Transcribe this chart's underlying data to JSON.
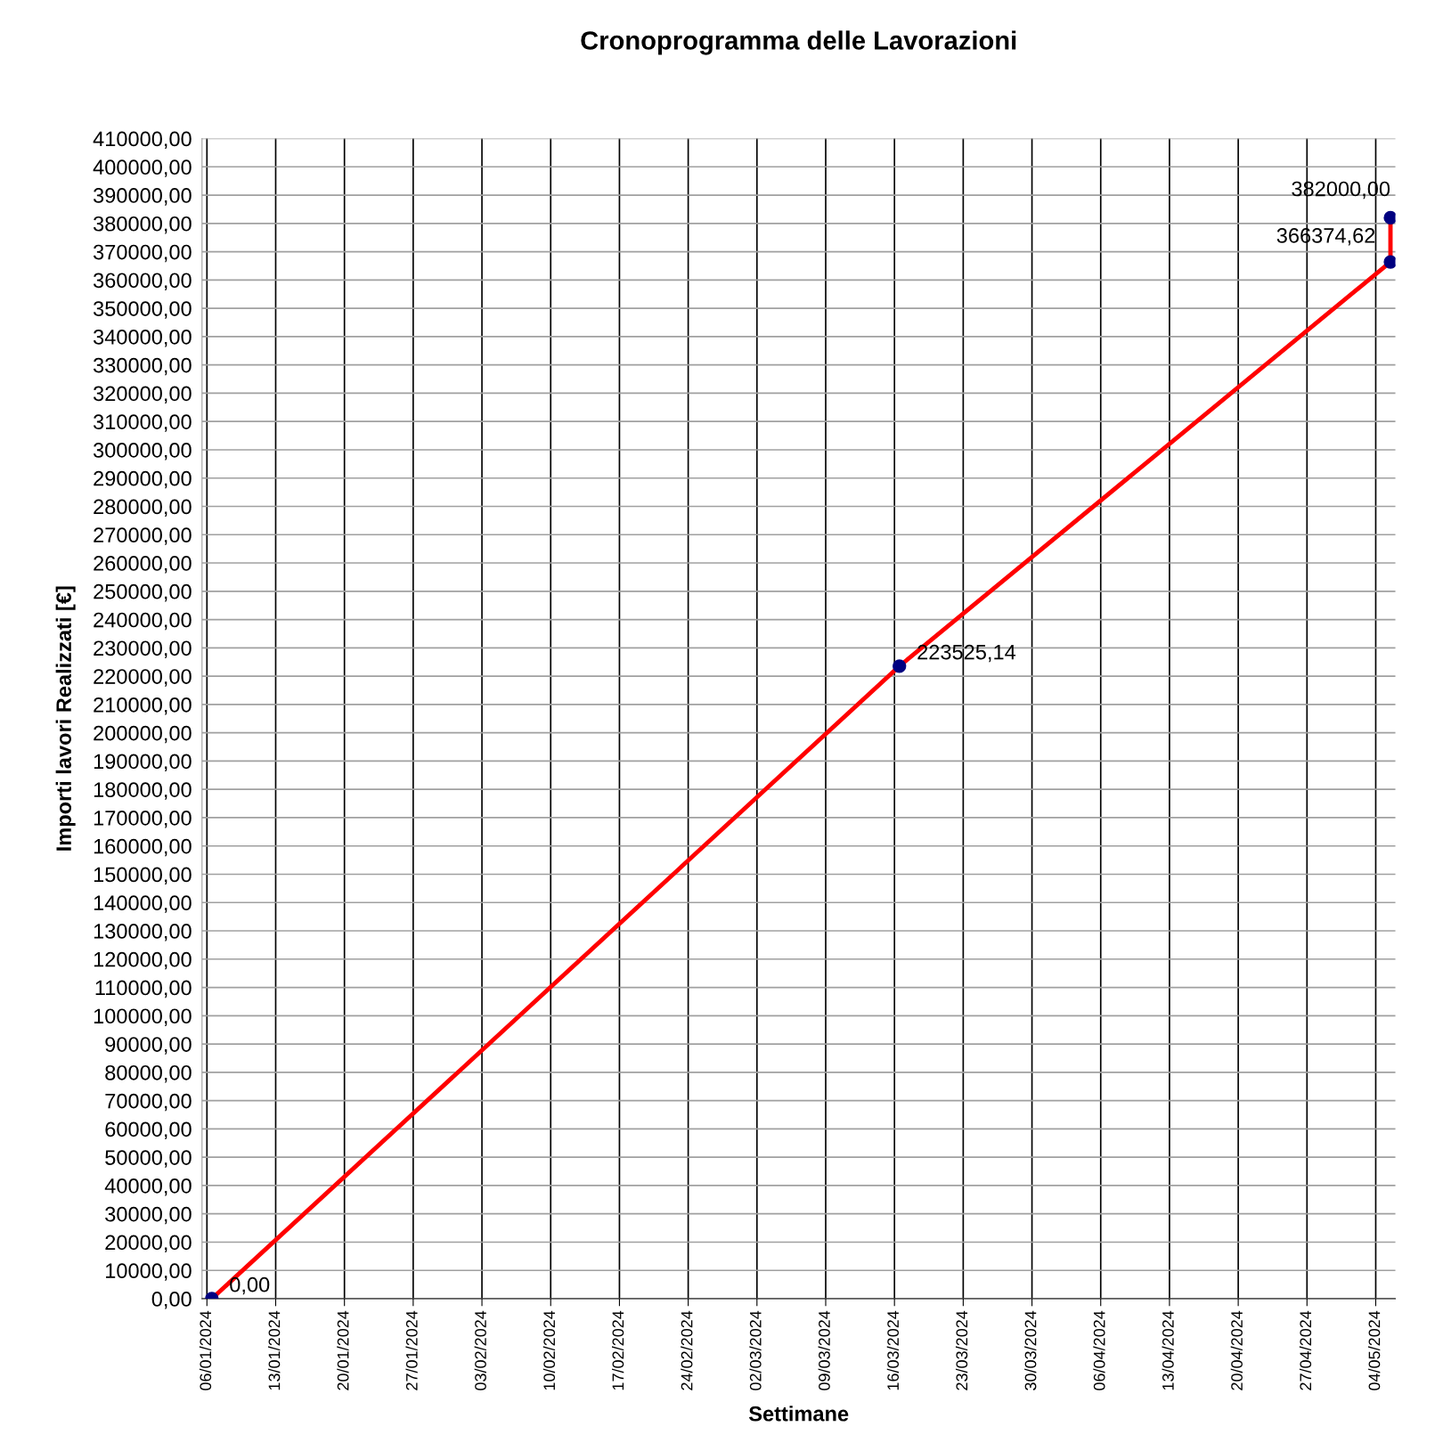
{
  "chart_data": {
    "type": "line",
    "title": "Cronoprogramma delle Lavorazioni",
    "xlabel": "Settimane",
    "ylabel": "Importi lavori Realizzati [€]",
    "x": [
      "2024-01-06T12:00",
      "2024-03-16T12:00",
      "2024-05-05T12:00",
      "2024-05-05T12:00"
    ],
    "series": [
      {
        "color": "#ff0000",
        "colors": [
          "#000080",
          "#000080",
          "#000080",
          "#000080"
        ],
        "values": [
          0,
          223525.14,
          366374.62,
          382000
        ],
        "value_labels": [
          "0,00",
          "223525,14",
          "366374,62",
          "382000,00"
        ]
      }
    ],
    "xlim": [
      "2024-01-05T12:00",
      "2024-05-06T00:00"
    ],
    "xticks": [
      {
        "value": "2024-01-06",
        "label": "06/01/2024"
      },
      {
        "value": "2024-01-13",
        "label": "13/01/2024"
      },
      {
        "value": "2024-01-20",
        "label": "20/01/2024"
      },
      {
        "value": "2024-01-27",
        "label": "27/01/2024"
      },
      {
        "value": "2024-02-03",
        "label": "03/02/2024"
      },
      {
        "value": "2024-02-10",
        "label": "10/02/2024"
      },
      {
        "value": "2024-02-17",
        "label": "17/02/2024"
      },
      {
        "value": "2024-02-24",
        "label": "24/02/2024"
      },
      {
        "value": "2024-03-02",
        "label": "02/03/2024"
      },
      {
        "value": "2024-03-09",
        "label": "09/03/2024"
      },
      {
        "value": "2024-03-16",
        "label": "16/03/2024"
      },
      {
        "value": "2024-03-23",
        "label": "23/03/2024"
      },
      {
        "value": "2024-03-30",
        "label": "30/03/2024"
      },
      {
        "value": "2024-04-06",
        "label": "06/04/2024"
      },
      {
        "value": "2024-04-13",
        "label": "13/04/2024"
      },
      {
        "value": "2024-04-20",
        "label": "20/04/2024"
      },
      {
        "value": "2024-04-27",
        "label": "27/04/2024"
      },
      {
        "value": "2024-05-04",
        "label": "04/05/2024"
      }
    ],
    "ylim": [
      0,
      410000
    ],
    "yticks": [
      {
        "value": 0,
        "label": "0,00"
      },
      {
        "value": 10000,
        "label": "10000,00"
      },
      {
        "value": 20000,
        "label": "20000,00"
      },
      {
        "value": 30000,
        "label": "30000,00"
      },
      {
        "value": 40000,
        "label": "40000,00"
      },
      {
        "value": 50000,
        "label": "50000,00"
      },
      {
        "value": 60000,
        "label": "60000,00"
      },
      {
        "value": 70000,
        "label": "70000,00"
      },
      {
        "value": 80000,
        "label": "80000,00"
      },
      {
        "value": 90000,
        "label": "90000,00"
      },
      {
        "value": 100000,
        "label": "100000,00"
      },
      {
        "value": 110000,
        "label": "110000,00"
      },
      {
        "value": 120000,
        "label": "120000,00"
      },
      {
        "value": 130000,
        "label": "130000,00"
      },
      {
        "value": 140000,
        "label": "140000,00"
      },
      {
        "value": 150000,
        "label": "150000,00"
      },
      {
        "value": 160000,
        "label": "160000,00"
      },
      {
        "value": 170000,
        "label": "170000,00"
      },
      {
        "value": 180000,
        "label": "180000,00"
      },
      {
        "value": 190000,
        "label": "190000,00"
      },
      {
        "value": 200000,
        "label": "200000,00"
      },
      {
        "value": 210000,
        "label": "210000,00"
      },
      {
        "value": 220000,
        "label": "220000,00"
      },
      {
        "value": 230000,
        "label": "230000,00"
      },
      {
        "value": 240000,
        "label": "240000,00"
      },
      {
        "value": 250000,
        "label": "250000,00"
      },
      {
        "value": 260000,
        "label": "260000,00"
      },
      {
        "value": 270000,
        "label": "270000,00"
      },
      {
        "value": 280000,
        "label": "280000,00"
      },
      {
        "value": 290000,
        "label": "290000,00"
      },
      {
        "value": 300000,
        "label": "300000,00"
      },
      {
        "value": 310000,
        "label": "310000,00"
      },
      {
        "value": 320000,
        "label": "320000,00"
      },
      {
        "value": 330000,
        "label": "330000,00"
      },
      {
        "value": 340000,
        "label": "340000,00"
      },
      {
        "value": 350000,
        "label": "350000,00"
      },
      {
        "value": 360000,
        "label": "360000,00"
      },
      {
        "value": 370000,
        "label": "370000,00"
      },
      {
        "value": 380000,
        "label": "380000,00"
      },
      {
        "value": 390000,
        "label": "390000,00"
      },
      {
        "value": 400000,
        "label": "400000,00"
      },
      {
        "value": 410000,
        "label": "410000,00"
      }
    ],
    "grid": true,
    "marker": "circle",
    "line_style": "solid"
  }
}
